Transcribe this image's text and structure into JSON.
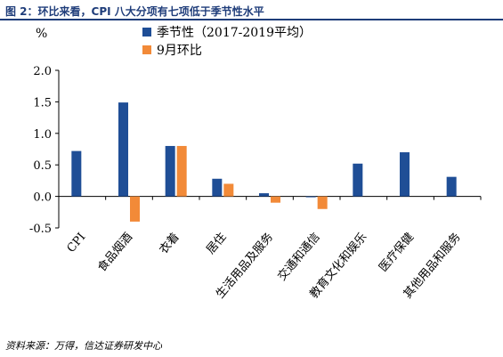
{
  "figure": {
    "title": "图 2：环比来看，CPI 八大分项有七项低于季节性水平",
    "source": "资料来源：万得，信达证券研发中心"
  },
  "chart_data": {
    "type": "bar",
    "ylabel": "%",
    "ylim": [
      -0.5,
      2.0
    ],
    "yticks": [
      "2.0",
      "1.5",
      "1.0",
      "0.5",
      "0.0",
      "-0.5"
    ],
    "ytick_values": [
      2.0,
      1.5,
      1.0,
      0.5,
      0.0,
      -0.5
    ],
    "grid": false,
    "legend_position": "top",
    "categories": [
      "CPI",
      "食品烟酒",
      "衣着",
      "居住",
      "生活用品及服务",
      "交通和通信",
      "教育文化和娱乐",
      "医疗保健",
      "其他用品和服务"
    ],
    "series": [
      {
        "name": "季节性（2017-2019平均）",
        "color": "#1f4e96",
        "values": [
          0.72,
          1.49,
          0.8,
          0.28,
          0.05,
          0.0,
          0.52,
          0.7,
          0.31
        ]
      },
      {
        "name": "9月环比",
        "color": "#f28a38",
        "values": [
          null,
          -0.4,
          0.8,
          0.2,
          -0.1,
          -0.2,
          null,
          null,
          null
        ]
      }
    ]
  }
}
